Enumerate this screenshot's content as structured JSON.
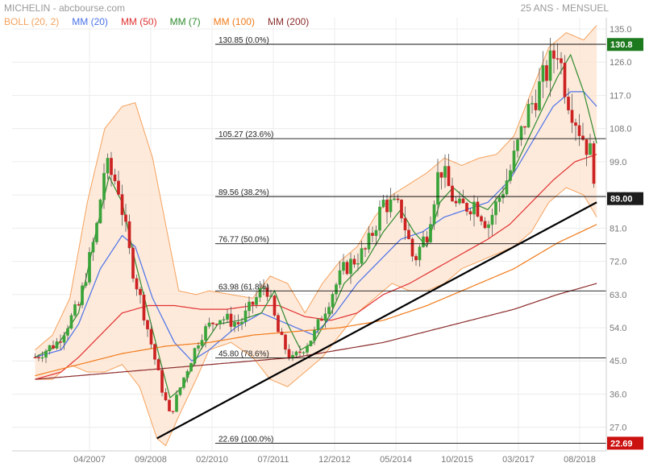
{
  "header": {
    "title": "MICHELIN - abcbourse.com",
    "period": "25 ANS - MENSUEL"
  },
  "legend": [
    {
      "label": "BOLL (20, 2)",
      "color": "#f5a25d"
    },
    {
      "label": "MM (20)",
      "color": "#4a72e8"
    },
    {
      "label": "MM (50)",
      "color": "#e03030"
    },
    {
      "label": "MM (7)",
      "color": "#2e8b2e"
    },
    {
      "label": "MM (100)",
      "color": "#f07a1a"
    },
    {
      "label": "MM (200)",
      "color": "#8b2a2a"
    }
  ],
  "price_tags": [
    {
      "value": "130.8",
      "y": 130.8,
      "color": "#1e7a1e"
    },
    {
      "value": "89.00",
      "y": 89.0,
      "color": "#1c1c1c"
    },
    {
      "value": "22.69",
      "y": 22.69,
      "color": "#cc1111"
    }
  ],
  "colors": {
    "up": "#3aa33a",
    "down": "#cc2222",
    "band_fill": "#fde3cf"
  },
  "chart_data": {
    "type": "candlestick",
    "x_ticks": [
      "04/2007",
      "09/2008",
      "02/2010",
      "07/2011",
      "12/2012",
      "05/2014",
      "10/2015",
      "03/2017",
      "08/2018"
    ],
    "y_ticks": [
      "135.0",
      "126.0",
      "117.0",
      "108.0",
      "99.0",
      "90.0",
      "81.0",
      "72.0",
      "63.0",
      "54.0",
      "45.0",
      "36.0",
      "27.0"
    ],
    "ylim": [
      22,
      136
    ],
    "fibonacci": [
      {
        "label": "130.85  (0.0%)",
        "value": 130.85
      },
      {
        "label": "105.27  (23.6%)",
        "value": 105.27
      },
      {
        "label": "89.56  (38.2%)",
        "value": 89.56
      },
      {
        "label": "76.77  (50.0%)",
        "value": 76.77
      },
      {
        "label": "63.98  (61.8%)",
        "value": 63.98
      },
      {
        "label": "45.80  (78.6%)",
        "value": 45.8
      },
      {
        "label": "22.69  (100.0%)",
        "value": 22.69
      }
    ],
    "trendline": {
      "from": [
        2008.8,
        24
      ],
      "to": [
        2018.9,
        88
      ]
    },
    "candle_key_closes": [
      [
        2006.0,
        46
      ],
      [
        2006.5,
        50
      ],
      [
        2007.0,
        60
      ],
      [
        2007.4,
        80
      ],
      [
        2007.6,
        98
      ],
      [
        2007.9,
        93
      ],
      [
        2008.2,
        72
      ],
      [
        2008.5,
        58
      ],
      [
        2008.9,
        38
      ],
      [
        2009.1,
        30
      ],
      [
        2009.4,
        40
      ],
      [
        2009.8,
        52
      ],
      [
        2010.2,
        57
      ],
      [
        2010.7,
        55
      ],
      [
        2011.3,
        66
      ],
      [
        2011.6,
        52
      ],
      [
        2011.9,
        45
      ],
      [
        2012.4,
        52
      ],
      [
        2012.8,
        63
      ],
      [
        2013.1,
        70
      ],
      [
        2013.6,
        75
      ],
      [
        2014.0,
        88
      ],
      [
        2014.4,
        86
      ],
      [
        2014.7,
        72
      ],
      [
        2015.0,
        80
      ],
      [
        2015.3,
        98
      ],
      [
        2015.7,
        86
      ],
      [
        2016.1,
        88
      ],
      [
        2016.4,
        82
      ],
      [
        2016.9,
        96
      ],
      [
        2017.3,
        112
      ],
      [
        2017.7,
        122
      ],
      [
        2018.0,
        130
      ],
      [
        2018.2,
        118
      ],
      [
        2018.5,
        108
      ],
      [
        2018.8,
        100
      ],
      [
        2018.9,
        89
      ]
    ],
    "series": [
      {
        "name": "BOLL (20, 2)",
        "upper": [
          [
            2006.0,
            48
          ],
          [
            2006.4,
            52
          ],
          [
            2006.8,
            62
          ],
          [
            2007.2,
            88
          ],
          [
            2007.6,
            108
          ],
          [
            2008.0,
            114
          ],
          [
            2008.3,
            115
          ],
          [
            2008.7,
            100
          ],
          [
            2009.0,
            82
          ],
          [
            2009.3,
            64
          ],
          [
            2009.7,
            63
          ],
          [
            2010.0,
            64
          ],
          [
            2010.5,
            63
          ],
          [
            2011.0,
            62
          ],
          [
            2011.4,
            68
          ],
          [
            2011.8,
            66
          ],
          [
            2012.2,
            58
          ],
          [
            2012.6,
            66
          ],
          [
            2013.0,
            72
          ],
          [
            2013.4,
            76
          ],
          [
            2013.8,
            84
          ],
          [
            2014.2,
            90
          ],
          [
            2014.6,
            93
          ],
          [
            2015.0,
            96
          ],
          [
            2015.4,
            100
          ],
          [
            2015.8,
            98
          ],
          [
            2016.2,
            100
          ],
          [
            2016.6,
            101
          ],
          [
            2017.0,
            106
          ],
          [
            2017.4,
            118
          ],
          [
            2017.8,
            130
          ],
          [
            2018.2,
            134
          ],
          [
            2018.6,
            132
          ],
          [
            2018.9,
            136
          ]
        ],
        "lower": [
          [
            2006.0,
            40
          ],
          [
            2006.4,
            40
          ],
          [
            2006.8,
            44
          ],
          [
            2007.2,
            42
          ],
          [
            2007.6,
            42
          ],
          [
            2008.0,
            44
          ],
          [
            2008.4,
            38
          ],
          [
            2008.8,
            24
          ],
          [
            2009.0,
            22
          ],
          [
            2009.3,
            30
          ],
          [
            2009.7,
            40
          ],
          [
            2010.0,
            48
          ],
          [
            2010.5,
            50
          ],
          [
            2011.0,
            46
          ],
          [
            2011.4,
            40
          ],
          [
            2011.8,
            38
          ],
          [
            2012.2,
            42
          ],
          [
            2012.6,
            46
          ],
          [
            2013.0,
            52
          ],
          [
            2013.4,
            58
          ],
          [
            2013.8,
            62
          ],
          [
            2014.2,
            66
          ],
          [
            2014.6,
            64
          ],
          [
            2015.0,
            64
          ],
          [
            2015.4,
            66
          ],
          [
            2015.8,
            70
          ],
          [
            2016.2,
            72
          ],
          [
            2016.6,
            74
          ],
          [
            2017.0,
            76
          ],
          [
            2017.4,
            80
          ],
          [
            2017.8,
            88
          ],
          [
            2018.2,
            92
          ],
          [
            2018.6,
            90
          ],
          [
            2018.9,
            84
          ]
        ]
      },
      {
        "name": "MM (20)",
        "points": [
          [
            2006.0,
            46
          ],
          [
            2006.6,
            48
          ],
          [
            2007.0,
            55
          ],
          [
            2007.5,
            70
          ],
          [
            2008.0,
            79
          ],
          [
            2008.3,
            76
          ],
          [
            2008.7,
            62
          ],
          [
            2009.2,
            50
          ],
          [
            2009.6,
            45
          ],
          [
            2010.0,
            48
          ],
          [
            2010.6,
            54
          ],
          [
            2011.2,
            58
          ],
          [
            2011.8,
            55
          ],
          [
            2012.4,
            52
          ],
          [
            2012.9,
            58
          ],
          [
            2013.4,
            66
          ],
          [
            2013.9,
            72
          ],
          [
            2014.4,
            78
          ],
          [
            2014.9,
            80
          ],
          [
            2015.4,
            84
          ],
          [
            2015.9,
            86
          ],
          [
            2016.4,
            88
          ],
          [
            2016.9,
            94
          ],
          [
            2017.4,
            104
          ],
          [
            2017.9,
            114
          ],
          [
            2018.3,
            118
          ],
          [
            2018.6,
            118
          ],
          [
            2018.9,
            114
          ]
        ]
      },
      {
        "name": "MM (50)",
        "points": [
          [
            2006.0,
            40
          ],
          [
            2006.6,
            42
          ],
          [
            2007.0,
            46
          ],
          [
            2007.5,
            52
          ],
          [
            2008.0,
            58
          ],
          [
            2008.6,
            60
          ],
          [
            2009.2,
            60
          ],
          [
            2009.8,
            59
          ],
          [
            2010.4,
            59
          ],
          [
            2011.0,
            60
          ],
          [
            2011.6,
            60
          ],
          [
            2012.2,
            57
          ],
          [
            2012.8,
            56
          ],
          [
            2013.4,
            58
          ],
          [
            2014.0,
            63
          ],
          [
            2014.6,
            66
          ],
          [
            2015.2,
            70
          ],
          [
            2015.8,
            74
          ],
          [
            2016.4,
            78
          ],
          [
            2016.9,
            82
          ],
          [
            2017.4,
            88
          ],
          [
            2017.9,
            94
          ],
          [
            2018.4,
            99
          ],
          [
            2018.9,
            101
          ]
        ]
      },
      {
        "name": "MM (7)",
        "points": [
          [
            2006.0,
            46
          ],
          [
            2006.5,
            49
          ],
          [
            2007.0,
            58
          ],
          [
            2007.4,
            80
          ],
          [
            2007.7,
            95
          ],
          [
            2008.0,
            88
          ],
          [
            2008.3,
            72
          ],
          [
            2008.6,
            58
          ],
          [
            2008.9,
            44
          ],
          [
            2009.1,
            35
          ],
          [
            2009.4,
            38
          ],
          [
            2009.8,
            48
          ],
          [
            2010.2,
            55
          ],
          [
            2010.7,
            56
          ],
          [
            2011.2,
            58
          ],
          [
            2011.5,
            64
          ],
          [
            2011.8,
            55
          ],
          [
            2012.1,
            48
          ],
          [
            2012.4,
            50
          ],
          [
            2012.8,
            58
          ],
          [
            2013.1,
            66
          ],
          [
            2013.6,
            72
          ],
          [
            2014.0,
            80
          ],
          [
            2014.4,
            86
          ],
          [
            2014.7,
            80
          ],
          [
            2015.0,
            76
          ],
          [
            2015.3,
            88
          ],
          [
            2015.6,
            92
          ],
          [
            2016.0,
            88
          ],
          [
            2016.4,
            86
          ],
          [
            2016.8,
            92
          ],
          [
            2017.2,
            102
          ],
          [
            2017.6,
            112
          ],
          [
            2018.0,
            122
          ],
          [
            2018.3,
            128
          ],
          [
            2018.6,
            118
          ],
          [
            2018.9,
            104
          ]
        ]
      },
      {
        "name": "MM (100)",
        "points": [
          [
            2006.0,
            41
          ],
          [
            2007.0,
            44
          ],
          [
            2008.0,
            47
          ],
          [
            2009.0,
            49
          ],
          [
            2010.0,
            50
          ],
          [
            2011.0,
            52
          ],
          [
            2012.0,
            53
          ],
          [
            2013.0,
            54
          ],
          [
            2014.0,
            56
          ],
          [
            2015.0,
            60
          ],
          [
            2016.0,
            65
          ],
          [
            2017.0,
            70
          ],
          [
            2018.0,
            77
          ],
          [
            2018.9,
            82
          ]
        ]
      },
      {
        "name": "MM (200)",
        "points": [
          [
            2006.0,
            40
          ],
          [
            2007.0,
            41
          ],
          [
            2008.0,
            42
          ],
          [
            2009.0,
            43
          ],
          [
            2010.0,
            44
          ],
          [
            2011.0,
            45
          ],
          [
            2012.0,
            46
          ],
          [
            2013.0,
            48
          ],
          [
            2014.0,
            50
          ],
          [
            2015.0,
            53
          ],
          [
            2016.0,
            56
          ],
          [
            2017.0,
            59
          ],
          [
            2018.0,
            63
          ],
          [
            2018.9,
            66
          ]
        ]
      }
    ]
  }
}
